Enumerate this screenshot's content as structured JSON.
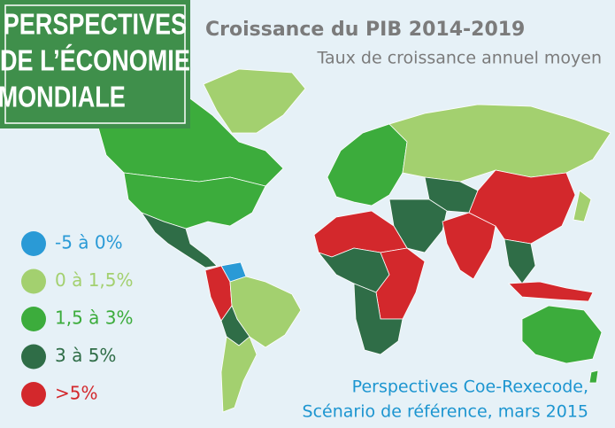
{
  "badge": {
    "lines": [
      "PERSPECTIVES",
      "DE L’ÉCONOMIE",
      "MONDIALE"
    ]
  },
  "title": "Croissance du PIB 2014-2019",
  "subtitle": "Taux de croissance annuel moyen",
  "legend": [
    {
      "label": "-5 à 0%",
      "color": "#2a9ad6"
    },
    {
      "label": "0 à 1,5%",
      "color": "#a3d06f"
    },
    {
      "label": "1,5 à 3%",
      "color": "#3cac3c"
    },
    {
      "label": "3 à 5%",
      "color": "#2f6d47"
    },
    {
      "label": ">5%",
      "color": "#d3282c"
    }
  ],
  "source": {
    "lines": [
      "Perspectives Coe-Rexecode,",
      "Scénario de référence, mars 2015"
    ]
  }
}
